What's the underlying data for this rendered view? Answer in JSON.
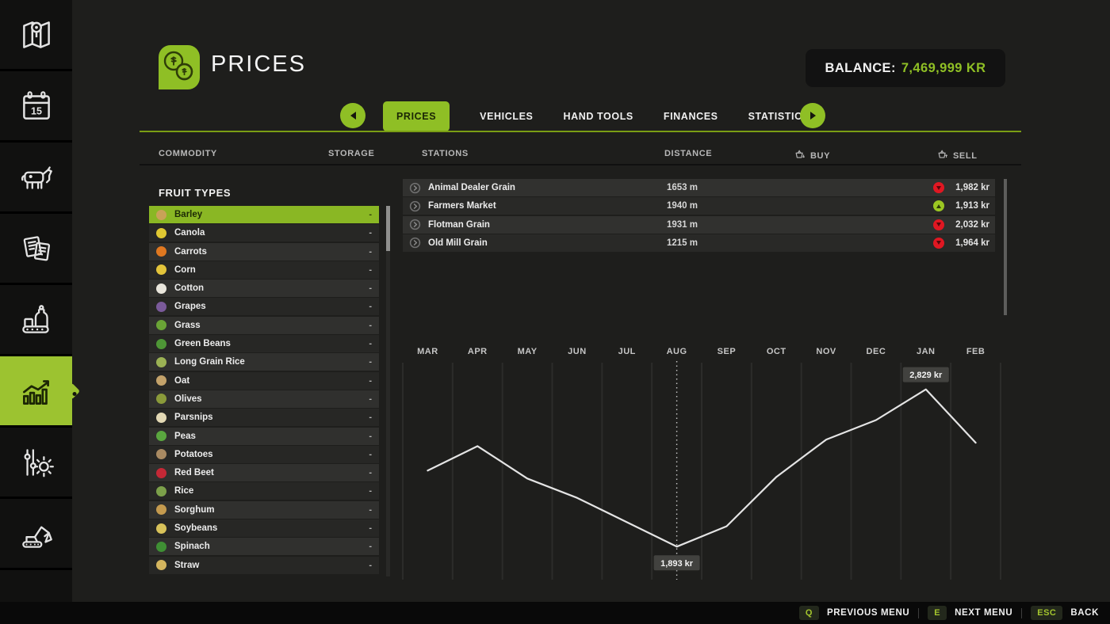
{
  "colors": {
    "accent": "#8fbf25",
    "price_up": "#9bc722",
    "price_down": "#e01722",
    "line": "#e4e4e4"
  },
  "header": {
    "title": "PRICES",
    "balance_label": "BALANCE:",
    "balance_value": "7,469,999 KR"
  },
  "sidebar": {
    "items": [
      {
        "id": "map",
        "icon": "map-icon",
        "selected": false
      },
      {
        "id": "calendar",
        "icon": "calendar-icon",
        "selected": false
      },
      {
        "id": "animals",
        "icon": "animals-icon",
        "selected": false
      },
      {
        "id": "contracts",
        "icon": "contracts-icon",
        "selected": false
      },
      {
        "id": "production",
        "icon": "production-icon",
        "selected": false
      },
      {
        "id": "statistics",
        "icon": "statistics-icon",
        "selected": true
      },
      {
        "id": "settings",
        "icon": "settings-icon",
        "selected": false
      },
      {
        "id": "construction",
        "icon": "construction-icon",
        "selected": false
      },
      {
        "id": "blank",
        "icon": "",
        "selected": false
      }
    ]
  },
  "tabs": {
    "items": [
      "PRICES",
      "VEHICLES",
      "HAND TOOLS",
      "FINANCES",
      "STATISTICS"
    ],
    "selected": "PRICES"
  },
  "table_headers": {
    "commodity": "COMMODITY",
    "storage": "STORAGE",
    "stations": "STATIONS",
    "distance": "DISTANCE",
    "buy": "BUY",
    "sell": "SELL"
  },
  "commodity_panel": {
    "heading": "FRUIT TYPES",
    "selected": "Barley",
    "items": [
      {
        "label": "Barley",
        "storage": "-",
        "color": "#c9a257",
        "selected": true
      },
      {
        "label": "Canola",
        "storage": "-",
        "color": "#e0c832",
        "selected": false
      },
      {
        "label": "Carrots",
        "storage": "-",
        "color": "#e07820",
        "selected": false
      },
      {
        "label": "Corn",
        "storage": "-",
        "color": "#e3c43a",
        "selected": false
      },
      {
        "label": "Cotton",
        "storage": "-",
        "color": "#e9e6dc",
        "selected": false
      },
      {
        "label": "Grapes",
        "storage": "-",
        "color": "#7a5a9a",
        "selected": false
      },
      {
        "label": "Grass",
        "storage": "-",
        "color": "#6aa336",
        "selected": false
      },
      {
        "label": "Green Beans",
        "storage": "-",
        "color": "#4e9636",
        "selected": false
      },
      {
        "label": "Long Grain Rice",
        "storage": "-",
        "color": "#9bb254",
        "selected": false
      },
      {
        "label": "Oat",
        "storage": "-",
        "color": "#c3a26a",
        "selected": false
      },
      {
        "label": "Olives",
        "storage": "-",
        "color": "#8a9a3a",
        "selected": false
      },
      {
        "label": "Parsnips",
        "storage": "-",
        "color": "#e3d9b5",
        "selected": false
      },
      {
        "label": "Peas",
        "storage": "-",
        "color": "#5aa63f",
        "selected": false
      },
      {
        "label": "Potatoes",
        "storage": "-",
        "color": "#a98a62",
        "selected": false
      },
      {
        "label": "Red Beet",
        "storage": "-",
        "color": "#c42836",
        "selected": false
      },
      {
        "label": "Rice",
        "storage": "-",
        "color": "#7ca04a",
        "selected": false
      },
      {
        "label": "Sorghum",
        "storage": "-",
        "color": "#c49a4e",
        "selected": false
      },
      {
        "label": "Soybeans",
        "storage": "-",
        "color": "#d8c25a",
        "selected": false
      },
      {
        "label": "Spinach",
        "storage": "-",
        "color": "#3f8f34",
        "selected": false
      },
      {
        "label": "Straw",
        "storage": "-",
        "color": "#d4b55e",
        "selected": false
      }
    ]
  },
  "stations": [
    {
      "name": "Animal Dealer Grain",
      "distance": "1653 m",
      "trend": "down",
      "price": "1,982 kr"
    },
    {
      "name": "Farmers Market",
      "distance": "1940 m",
      "trend": "up",
      "price": "1,913 kr"
    },
    {
      "name": "Flotman Grain",
      "distance": "1931 m",
      "trend": "down",
      "price": "2,032 kr"
    },
    {
      "name": "Old Mill Grain",
      "distance": "1215 m",
      "trend": "down",
      "price": "1,964 kr"
    }
  ],
  "chart_data": {
    "type": "line",
    "title": "",
    "categories": [
      "MAR",
      "APR",
      "MAY",
      "JUN",
      "JUL",
      "AUG",
      "SEP",
      "OCT",
      "NOV",
      "DEC",
      "JAN",
      "FEB"
    ],
    "series": [
      {
        "name": "Barley price (kr)",
        "values": [
          2346,
          2491,
          2298,
          2183,
          2038,
          1893,
          2014,
          2308,
          2530,
          2646,
          2829,
          2511
        ]
      }
    ],
    "ylim": [
      1800,
      2950
    ],
    "xlabel": "",
    "ylabel": "",
    "grid": "vertical",
    "legend": false,
    "current_month_marker": "AUG",
    "annotations": [
      {
        "category": "JAN",
        "label": "2,829 kr",
        "placement": "above"
      },
      {
        "category": "AUG",
        "label": "1,893 kr",
        "placement": "below"
      }
    ]
  },
  "footer": {
    "shortcuts": [
      {
        "key": "Q",
        "label": "PREVIOUS MENU"
      },
      {
        "key": "E",
        "label": "NEXT MENU"
      },
      {
        "key": "ESC",
        "label": "BACK"
      }
    ]
  }
}
